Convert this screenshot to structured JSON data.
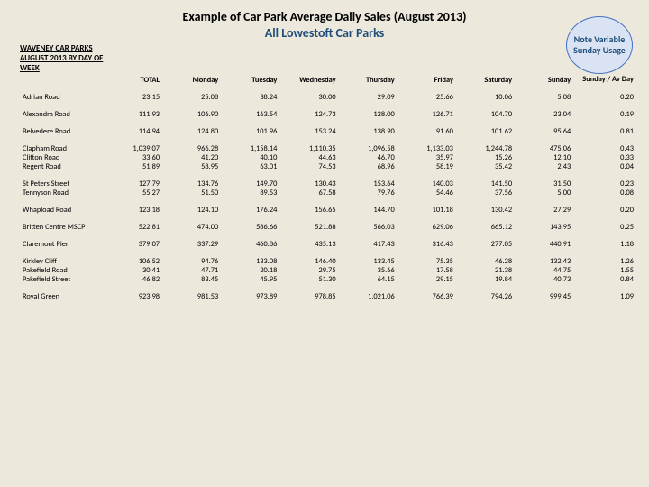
{
  "colors": {
    "background": "#ece8dc",
    "subtitle": "#1f4e79",
    "bubble_fill": "#dae3f3",
    "bubble_border": "#4472c4",
    "bubble_text": "#1f4e79"
  },
  "title": "Example of Car Park Average Daily Sales (August 2013)",
  "subtitle": "All Lowestoft Car Parks",
  "note": "Note Variable Sunday Usage",
  "section_label": "WAVENEY CAR PARKS AUGUST 2013 BY DAY OF WEEK",
  "columns": [
    "",
    "TOTAL",
    "Monday",
    "Tuesday",
    "Wednesday",
    "Thursday",
    "Friday",
    "Saturday",
    "Sunday",
    "Sunday / Av Day"
  ],
  "groups": [
    [
      {
        "label": "Adrian Road",
        "v": [
          "23.15",
          "25.08",
          "38.24",
          "30.00",
          "29.09",
          "25.66",
          "10.06",
          "5.08",
          "0.20"
        ]
      }
    ],
    [
      {
        "label": "Alexandra Road",
        "v": [
          "111.93",
          "106.90",
          "163.54",
          "124.73",
          "128.00",
          "126.71",
          "104.70",
          "23.04",
          "0.19"
        ]
      }
    ],
    [
      {
        "label": "Belvedere Road",
        "v": [
          "114.94",
          "124.80",
          "101.96",
          "153.24",
          "138.90",
          "91.60",
          "101.62",
          "95.64",
          "0.81"
        ]
      }
    ],
    [
      {
        "label": "Clapham Road",
        "v": [
          "1,039.07",
          "966.28",
          "1,158.14",
          "1,110.35",
          "1,096.58",
          "1,133.03",
          "1,244.78",
          "475.06",
          "0.43"
        ]
      },
      {
        "label": "Clifton Road",
        "v": [
          "33.60",
          "41.20",
          "40.10",
          "44.63",
          "46.70",
          "35.97",
          "15.26",
          "12.10",
          "0.33"
        ]
      },
      {
        "label": "Regent Road",
        "v": [
          "51.89",
          "58.95",
          "63.01",
          "74.53",
          "68.96",
          "58.19",
          "35.42",
          "2.43",
          "0.04"
        ]
      }
    ],
    [
      {
        "label": "St Peters Street",
        "v": [
          "127.79",
          "134.76",
          "149.70",
          "130.43",
          "153.64",
          "140.03",
          "141.50",
          "31.50",
          "0.23"
        ]
      },
      {
        "label": "Tennyson Road",
        "v": [
          "55.27",
          "51.50",
          "89.53",
          "67.58",
          "79.76",
          "54.46",
          "37.56",
          "5.00",
          "0.08"
        ]
      }
    ],
    [
      {
        "label": "Whapload Road",
        "v": [
          "123.18",
          "124.10",
          "176.24",
          "156.65",
          "144.70",
          "101.18",
          "130.42",
          "27.29",
          "0.20"
        ]
      }
    ],
    [
      {
        "label": "Britten Centre MSCP",
        "v": [
          "522.81",
          "474.00",
          "586.66",
          "521.88",
          "566.03",
          "629.06",
          "665.12",
          "143.95",
          "0.25"
        ]
      }
    ],
    [
      {
        "label": "Claremont Pier",
        "v": [
          "379.07",
          "337.29",
          "460.86",
          "435.13",
          "417.43",
          "316.43",
          "277.05",
          "440.91",
          "1.18"
        ]
      }
    ],
    [
      {
        "label": "Kirkley Cliff",
        "v": [
          "106.52",
          "94.76",
          "133.08",
          "146.40",
          "133.45",
          "75.35",
          "46.28",
          "132.43",
          "1.26"
        ]
      },
      {
        "label": "Pakefield Road",
        "v": [
          "30.41",
          "47.71",
          "20.18",
          "29.75",
          "35.66",
          "17.58",
          "21.38",
          "44.75",
          "1.55"
        ]
      },
      {
        "label": "Pakefield Street",
        "v": [
          "46.82",
          "83.45",
          "45.95",
          "51.30",
          "64.15",
          "29.15",
          "19.84",
          "40.73",
          "0.84"
        ]
      }
    ],
    [
      {
        "label": "Royal Green",
        "v": [
          "923.98",
          "981.53",
          "973.89",
          "978.85",
          "1,021.06",
          "766.39",
          "794.26",
          "999.45",
          "1.09"
        ]
      }
    ]
  ]
}
